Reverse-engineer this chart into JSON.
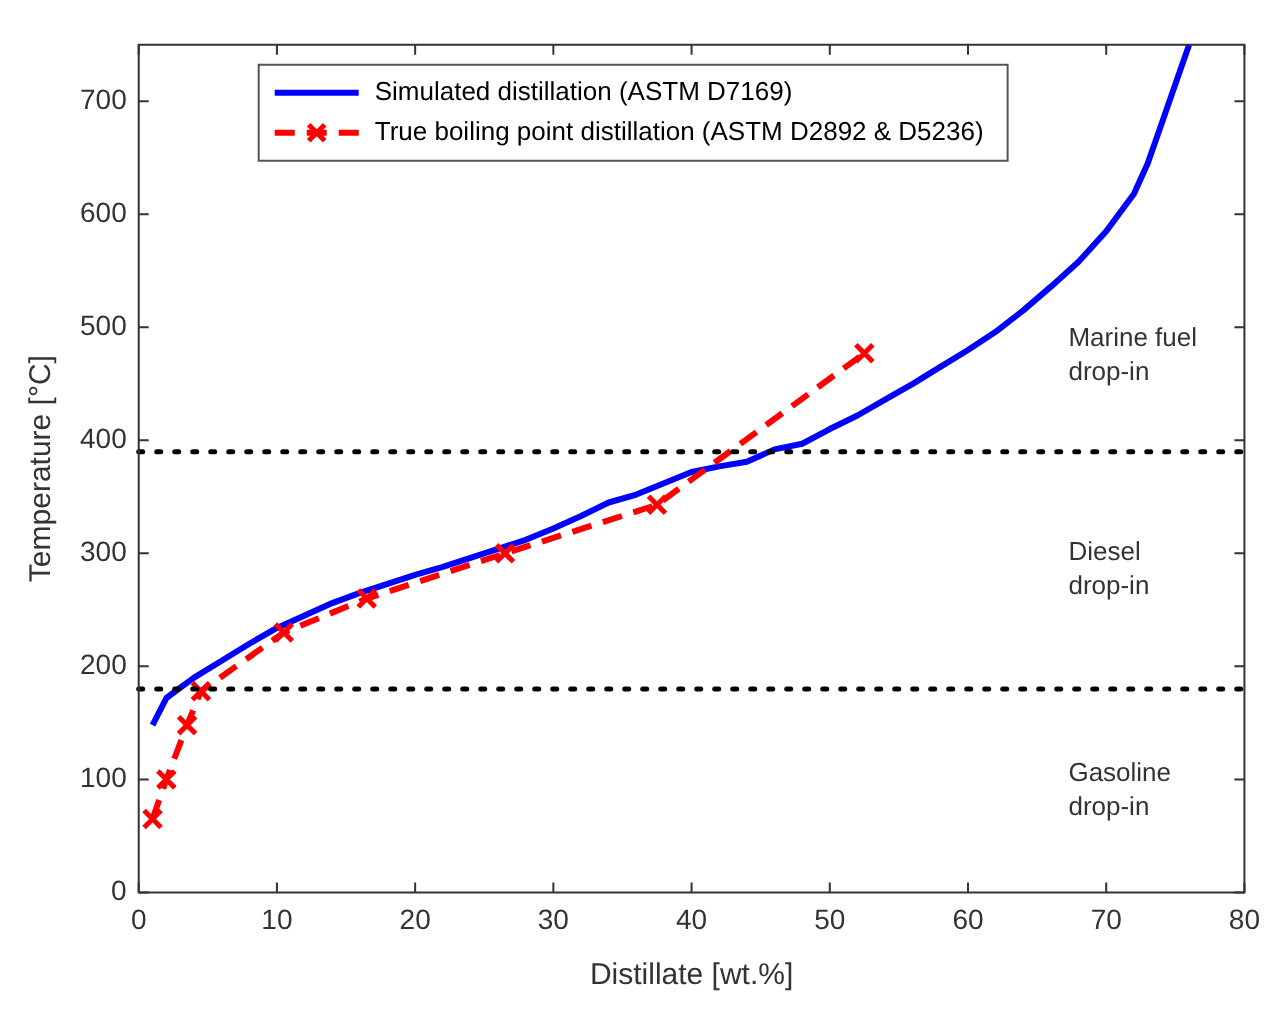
{
  "chart_data": {
    "type": "line",
    "xlabel": "Distillate [wt.%]",
    "ylabel": "Temperature [°C]",
    "xlim": [
      0,
      80
    ],
    "xticks": [
      0,
      10,
      20,
      30,
      40,
      50,
      60,
      70,
      80
    ],
    "ylim": [
      0,
      750
    ],
    "yticks": [
      0,
      100,
      200,
      300,
      400,
      500,
      600,
      700
    ],
    "grid": false,
    "legend": "top left",
    "series": [
      {
        "name": "Simulated distillation (ASTM D7169)",
        "color": "#0000ff",
        "marker": "none",
        "line_style": "solid",
        "x": [
          1,
          2,
          4,
          6,
          8,
          10,
          12,
          14,
          16,
          18,
          20,
          22,
          24,
          26,
          28,
          30,
          32,
          34,
          36,
          38,
          40,
          42,
          44,
          46,
          48,
          50,
          52,
          54,
          56,
          58,
          60,
          62,
          64,
          66,
          68,
          70,
          72,
          73,
          74,
          75,
          76
        ],
        "values": [
          148,
          172,
          190,
          205,
          220,
          234,
          245,
          256,
          265,
          273,
          281,
          288,
          296,
          304,
          312,
          322,
          333,
          345,
          352,
          362,
          372,
          377,
          381,
          392,
          397,
          410,
          422,
          436,
          450,
          465,
          480,
          496,
          515,
          536,
          558,
          585,
          618,
          645,
          680,
          715,
          750
        ]
      },
      {
        "name": "True boiling point distillation (ASTM D2892 & D5236)",
        "color": "#ff0000",
        "marker": "cross",
        "line_style": "dashed",
        "x": [
          1,
          2,
          3.5,
          4.5,
          10.5,
          16.5,
          26.5,
          37.5,
          52.5
        ],
        "values": [
          65,
          100,
          148,
          178,
          230,
          260,
          300,
          343,
          477
        ]
      }
    ],
    "ref_lines": [
      {
        "axis": "y",
        "value": 180,
        "color": "#000000",
        "line_style": "dotted"
      },
      {
        "axis": "y",
        "value": 390,
        "color": "#000000",
        "line_style": "dotted"
      }
    ],
    "annotations": [
      "Marine fuel drop-in",
      "Diesel drop-in",
      "Gasoline drop-in"
    ]
  }
}
